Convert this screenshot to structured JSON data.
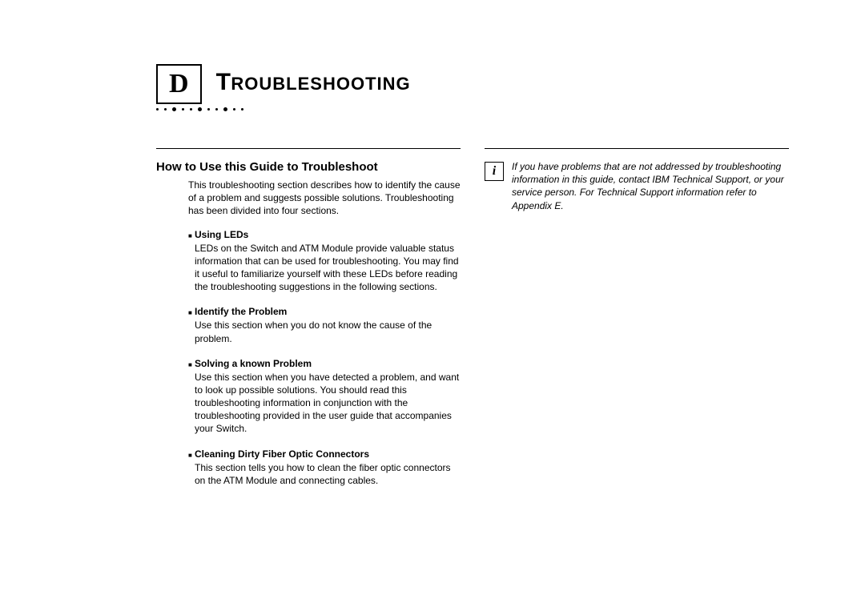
{
  "chapter": {
    "letter": "D",
    "title_first": "T",
    "title_rest": "ROUBLESHOOTING"
  },
  "left": {
    "section_title": "How to Use this Guide to Troubleshoot",
    "intro": "This troubleshooting section describes how to identify the cause of a problem and suggests possible solutions. Troubleshooting has been divided into four sections.",
    "items": [
      {
        "title": "Using LEDs",
        "body": "LEDs on the Switch and ATM Module provide valuable status information that can be used for troubleshooting. You may find it useful to familiarize yourself with these LEDs before reading the troubleshooting suggestions in the following sections."
      },
      {
        "title": "Identify the Problem",
        "body": "Use this section when you do not know the cause of the problem."
      },
      {
        "title": "Solving a known Problem",
        "body": "Use this section when you have detected a problem, and want to look up possible solutions. You should read this troubleshooting information in conjunction with the troubleshooting provided in the user guide that accompanies your Switch."
      },
      {
        "title": "Cleaning Dirty Fiber Optic Connectors",
        "body": "This section tells you how to clean the fiber optic connectors on the ATM Module and connecting cables."
      }
    ]
  },
  "right": {
    "info_glyph": "i",
    "info_text": "If you have problems that are not addressed by troubleshooting information in this guide, contact IBM Technical Support, or your service person. For Technical Support information refer to Appendix E."
  }
}
